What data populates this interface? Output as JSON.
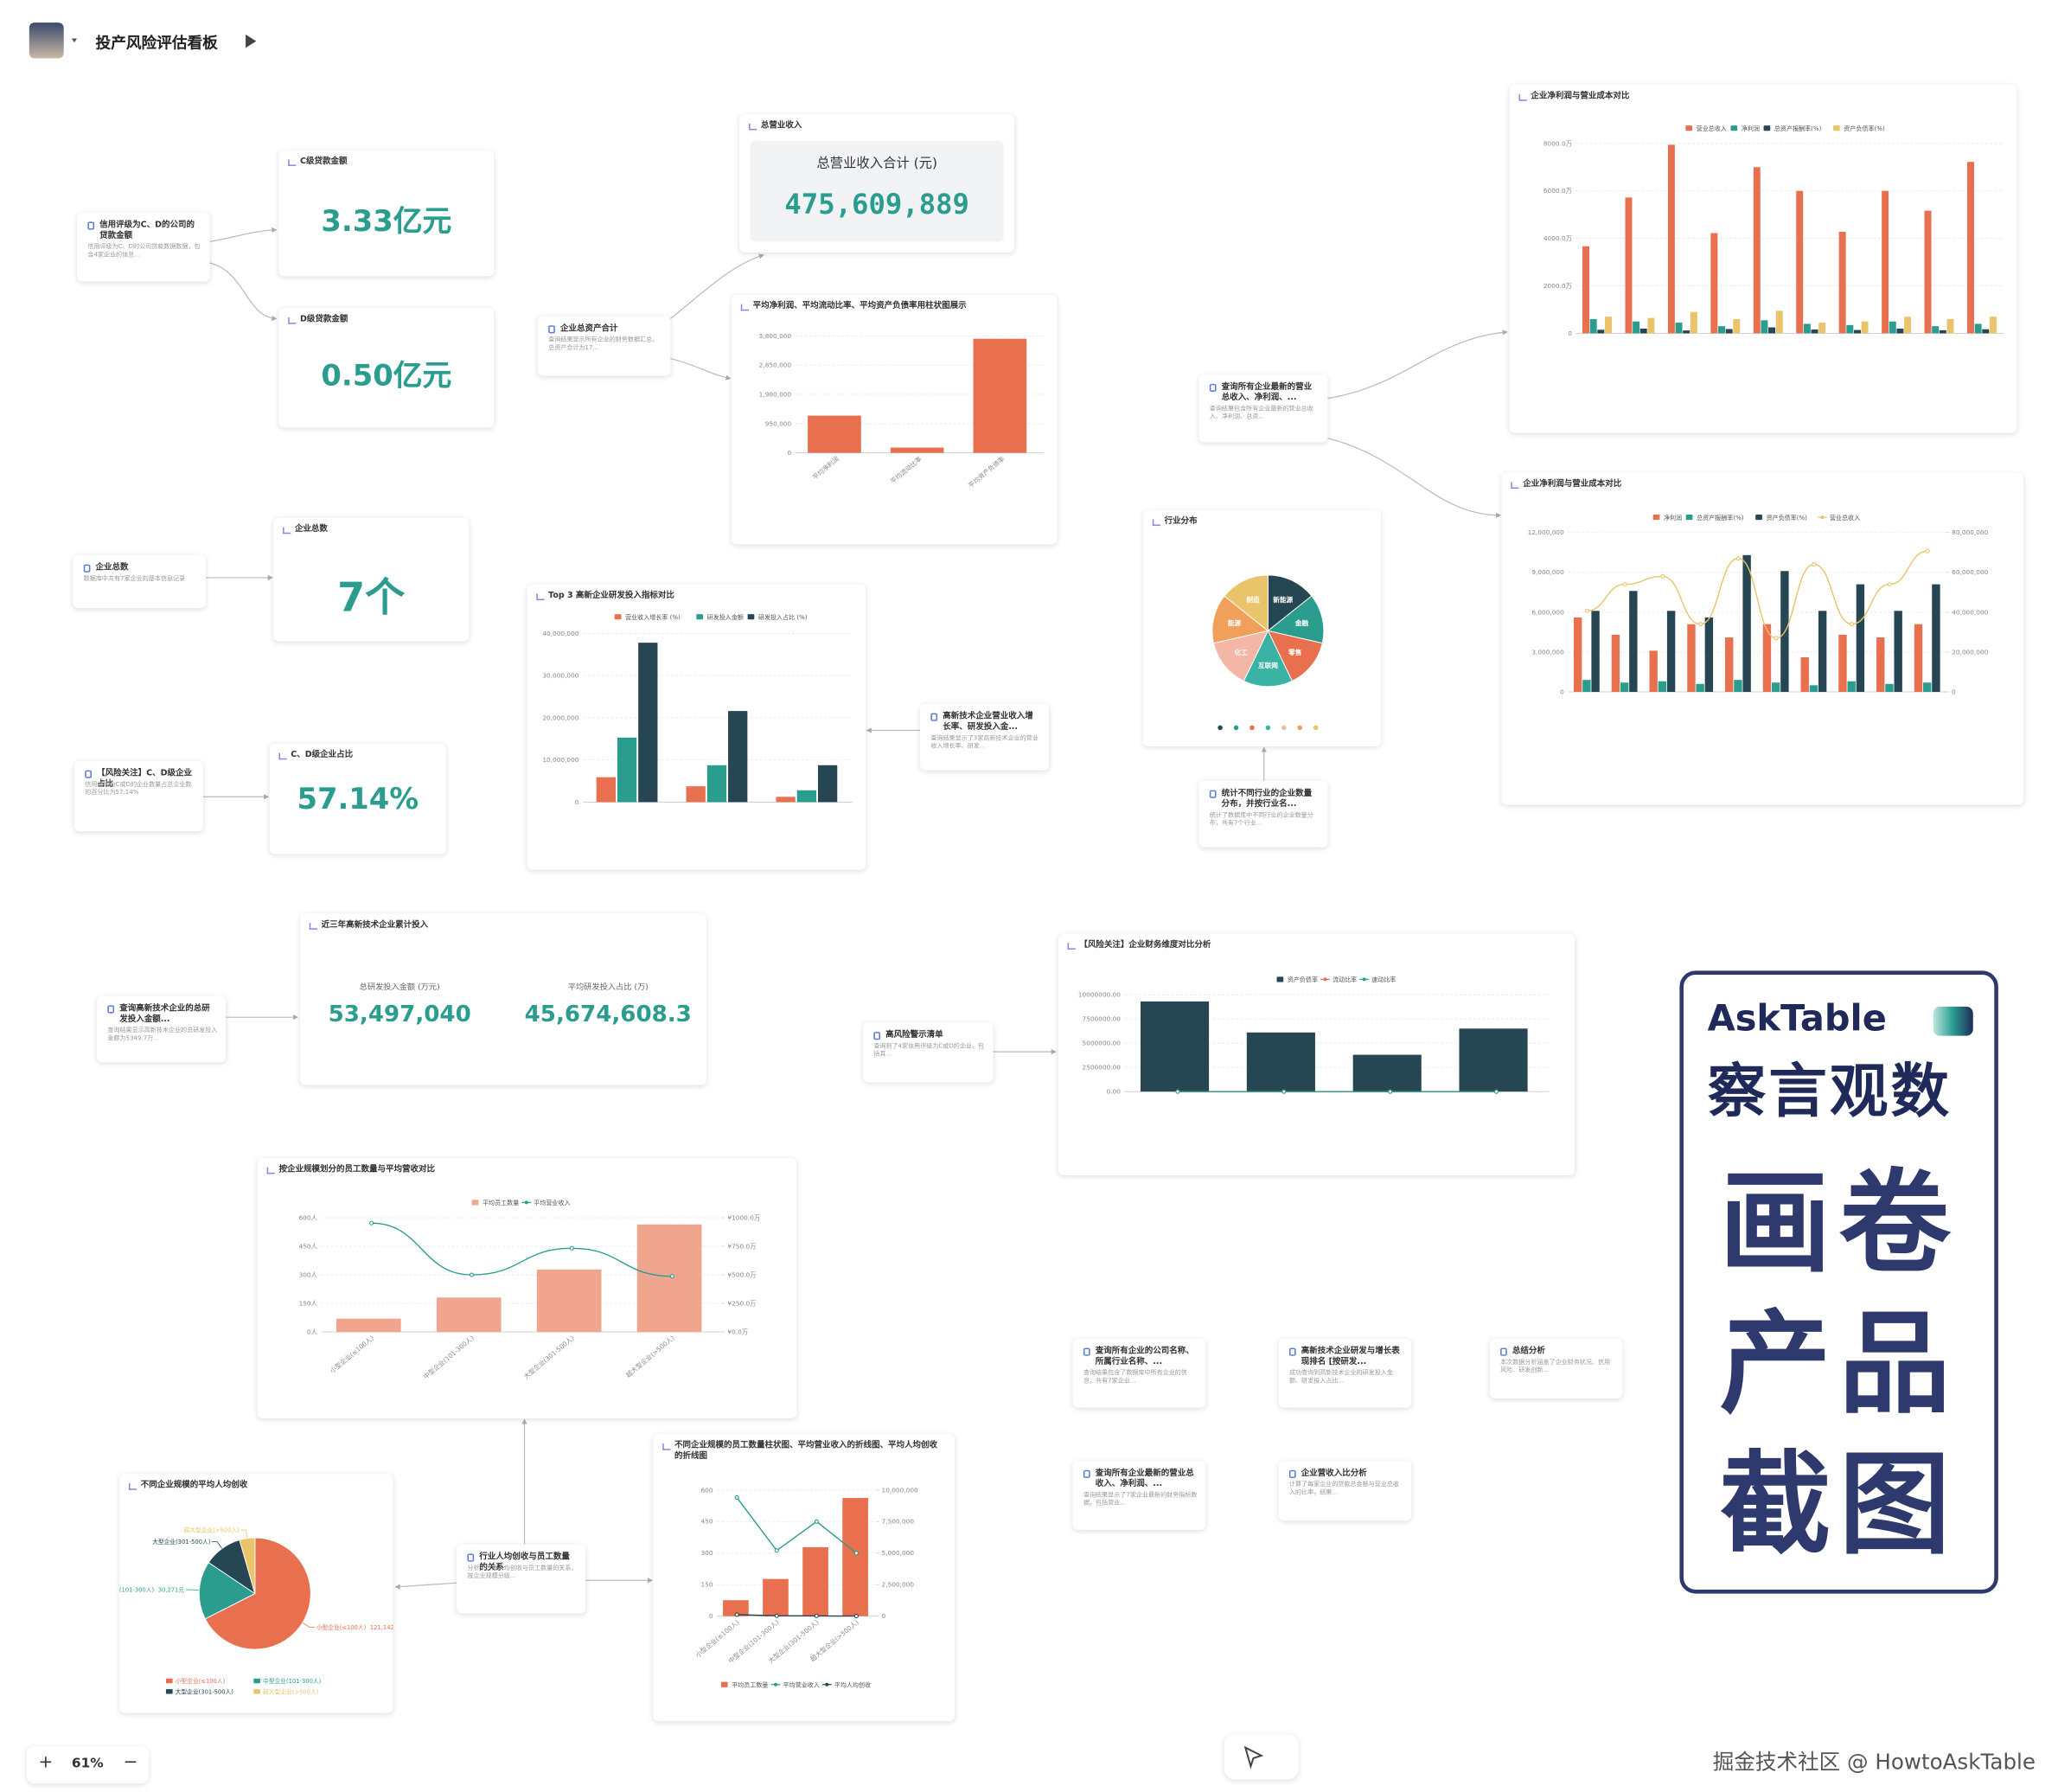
{
  "header": {
    "title": "投产风险评估看板"
  },
  "zoom": {
    "plus": "+",
    "level": "61%",
    "minus": "−"
  },
  "watermark": "掘金技术社区 @ HowtoAskTable",
  "brand": {
    "logo": "AskTable",
    "tagline": "察言观数",
    "lines": [
      "画卷",
      "产品",
      "截图"
    ]
  },
  "query_cards": [
    {
      "title": "信用评级为C、D的公司的贷款金额",
      "desc": "信用评级为C、D的公司贷款数据数据，包含4家企业的信息..."
    },
    {
      "title": "企业总资产合计",
      "desc": "查询结果显示所有企业的财务数据汇总，总资产合计为17..."
    },
    {
      "title": "查询所有企业最新的营业总收入、净利润、...",
      "desc": "查询结果包含所有企业最新的营业总收入、净利润、总资..."
    },
    {
      "title": "企业总数",
      "desc": "数据库中共有7家企业的基本信息记录"
    },
    {
      "title": "高新技术企业营业收入增长率、研发投入金...",
      "desc": "查询结果显示了3家高新技术企业的营业收入增长率、研发..."
    },
    {
      "title": "统计不同行业的企业数量分布，并按行业名...",
      "desc": "统计了数据库中不同行业的企业数量分布，共有7个行业..."
    },
    {
      "title": "【风险关注】C、D级企业占比",
      "desc": "信用评级为C或D的企业数量占总企业数的百分比为57.14%"
    },
    {
      "title": "查询高新技术企业的总研发投入金额...",
      "desc": "查询结果显示高新技术企业的总研发投入金额为5349.7万..."
    },
    {
      "title": "高风险警示清单",
      "desc": "查询到了4家信用评级为C或D的企业，包括其..."
    },
    {
      "title": "行业人均创收与员工数量的关系",
      "desc": "分析了行业人均创收与员工数量的关系，按企业规模分级..."
    },
    {
      "title": "查询所有企业的公司名称、所属行业名称、...",
      "desc": "查询结果包含了数据库中所有企业的信息，共有7家企业..."
    },
    {
      "title": "高新技术企业研发与增长表现排名 [按研发...",
      "desc": "成功查询到高新技术企业的研发投入金额、研发投入占比..."
    },
    {
      "title": "总结分析",
      "desc": "本次数据分析涵盖了企业财务状况、信用风险、研发创新..."
    },
    {
      "title": "查询所有企业最新的营业总收入、净利润、...",
      "desc": "查询结果显示了7家企业最新的财务指标数据，包括营业..."
    },
    {
      "title": "企业营收入比分析",
      "desc": "计算了每家企业的贷款总金额与营业总收入的比率，结果..."
    }
  ],
  "metric_cards": [
    {
      "label": "C级贷款金额",
      "value": "3.33亿元"
    },
    {
      "label": "D级贷款金额",
      "value": "0.50亿元"
    },
    {
      "label": "企业总数",
      "value": "7个"
    },
    {
      "label": "C、D级企业占比",
      "value": "57.14%"
    }
  ],
  "summary_card": {
    "label": "总营业收入",
    "caption": "总营业收入合计 (元)",
    "value": "475,609,889"
  },
  "stats_card": {
    "label": "近三年高新技术企业累计投入",
    "items": [
      {
        "caption": "总研发投入金额 (万元)",
        "value": "53,497,040"
      },
      {
        "caption": "平均研发投入占比 (万)",
        "value": "45,674,608.3"
      }
    ]
  },
  "chart_data": [
    {
      "type": "bar",
      "title": "平均净利润、平均流动比率、平均资产负债率用柱状图展示",
      "categories": [
        "平均净利润",
        "平均流动比率",
        "平均资产负债率"
      ],
      "values": [
        1210000,
        170000,
        3710000
      ],
      "color": "#e8704f",
      "ylim": [
        0,
        3800000
      ],
      "yticks": [
        0,
        {
          "value": 950000,
          "label": "950,000"
        },
        {
          "value": 1900000,
          "label": "1,900,000"
        },
        {
          "value": 2850000,
          "label": "2,850,000"
        },
        {
          "value": 3800000,
          "label": "3,800,000"
        }
      ],
      "grid": true
    },
    {
      "type": "bar",
      "title": "企业净利润与营业成本对比",
      "categories": [
        null,
        null,
        null,
        null,
        null,
        null,
        null,
        null,
        null,
        null
      ],
      "series": [
        {
          "name": "营业总收入",
          "color": "#e8704f",
          "values": [
            3667,
            5722,
            7944,
            4222,
            7000,
            6000,
            4278,
            6000,
            5167,
            7222
          ]
        },
        {
          "name": "净利润",
          "color": "#2a9d8f",
          "values": [
            600,
            500,
            450,
            300,
            550,
            400,
            350,
            500,
            300,
            400
          ]
        },
        {
          "name": "总资产报酬率(%)",
          "color": "#264653",
          "values": [
            150,
            200,
            120,
            180,
            250,
            160,
            140,
            200,
            130,
            170
          ]
        },
        {
          "name": "资产负债率(%)",
          "color": "#e9c46a",
          "values": [
            700,
            650,
            900,
            600,
            950,
            450,
            500,
            700,
            600,
            700
          ]
        }
      ],
      "ylim": [
        0,
        8000
      ],
      "yticks": [
        0,
        {
          "value": 2000,
          "label": "2000.0万"
        },
        {
          "value": 4000,
          "label": "4000.0万"
        },
        {
          "value": 6000,
          "label": "6000.0万"
        },
        {
          "value": 8000,
          "label": "8000.0万"
        }
      ],
      "grid": true
    },
    {
      "type": "bar",
      "title": "企业净利润与营业成本对比",
      "smooth": true,
      "categories": [
        null,
        null,
        null,
        null,
        null,
        null,
        null,
        null,
        null,
        null
      ],
      "series": [
        {
          "name": "净利润",
          "color": "#e8704f",
          "values": [
            5600000,
            4300000,
            3100000,
            5100000,
            4100000,
            5100000,
            2600000,
            4300000,
            4100000,
            5100000
          ]
        },
        {
          "name": "总资产报酬率(%)",
          "color": "#2a9d8f",
          "values": [
            900000,
            700000,
            800000,
            600000,
            900000,
            700000,
            500000,
            800000,
            600000,
            700000
          ]
        },
        {
          "name": "资产负债率(%)",
          "color": "#264653",
          "values": [
            6100000,
            7600000,
            6100000,
            5600000,
            10300000,
            9100000,
            6100000,
            8100000,
            6100000,
            8100000
          ]
        },
        {
          "name": "营业总收入",
          "color": "#e9c46a",
          "type": "line",
          "axis": "y2",
          "values": [
            40700000,
            54000000,
            58000000,
            34000000,
            67000000,
            27000000,
            64000000,
            34000000,
            54000000,
            70700000
          ]
        }
      ],
      "ylim": [
        0,
        12000000
      ],
      "yticks": [
        0,
        {
          "value": 3000000,
          "label": "3,000,000"
        },
        {
          "value": 6000000,
          "label": "6,000,000"
        },
        {
          "value": 9000000,
          "label": "9,000,000"
        },
        {
          "value": 12000000,
          "label": "12,000,000"
        }
      ],
      "y2lim": [
        0,
        80000000
      ],
      "y2ticks": [
        0,
        {
          "value": 20000000,
          "label": "20,000,000"
        },
        {
          "value": 40000000,
          "label": "40,000,000"
        },
        {
          "value": 60000000,
          "label": "60,000,000"
        },
        {
          "value": 80000000,
          "label": "80,000,000"
        }
      ],
      "grid": true
    },
    {
      "type": "bar",
      "title": "Top 3 高新企业研发投入指标对比",
      "categories": [
        null,
        null,
        null
      ],
      "series": [
        {
          "name": "营业收入增长率 (%)",
          "color": "#e8704f",
          "values": [
            5900000,
            3750000,
            1250000
          ]
        },
        {
          "name": "研发投入金额",
          "color": "#2a9d8f",
          "values": [
            15300000,
            8750000,
            2800000
          ]
        },
        {
          "name": "研发投入占比 (%)",
          "color": "#264653",
          "values": [
            37800000,
            21600000,
            8750000
          ]
        }
      ],
      "ylim": [
        0,
        40000000
      ],
      "yticks": [
        0,
        {
          "value": 10000000,
          "label": "10,000,000"
        },
        {
          "value": 20000000,
          "label": "20,000,000"
        },
        {
          "value": 30000000,
          "label": "30,000,000"
        },
        {
          "value": 40000000,
          "label": "40,000,000"
        }
      ],
      "grid": true
    },
    {
      "type": "pie",
      "title": "行业分布",
      "labels": "inside",
      "categories": [
        "新能源",
        "金融",
        "零售",
        "互联网",
        "化工",
        "能源",
        "制造"
      ],
      "values": [
        1,
        1,
        1,
        1,
        1,
        1,
        1
      ],
      "colors": [
        "#264653",
        "#2a9d8f",
        "#e8704f",
        "#3bb3a4",
        "#f4b6a6",
        "#f0a05a",
        "#e9c46a"
      ]
    },
    {
      "type": "bar",
      "title": "【风险关注】企业财务维度对比分析",
      "categories": [
        null,
        null,
        null,
        null
      ],
      "series": [
        {
          "name": "资产负债率",
          "color": "#264653",
          "values": [
            9300000,
            6100000,
            3800000,
            6500000
          ]
        },
        {
          "name": "流动比率",
          "color": "#e8704f",
          "type": "line",
          "values": [
            1.8,
            1.5,
            1.2,
            2.1
          ]
        },
        {
          "name": "速动比率",
          "color": "#2a9d8f",
          "type": "line",
          "values": [
            1.2,
            1.0,
            0.8,
            1.5
          ]
        }
      ],
      "ylim": [
        0,
        10000000
      ],
      "yticks": [
        {
          "value": 0,
          "label": "0.00"
        },
        {
          "value": 2500000,
          "label": "2500000.00"
        },
        {
          "value": 5000000,
          "label": "5000000.00"
        },
        {
          "value": 7500000,
          "label": "7500000.00"
        },
        {
          "value": 10000000,
          "label": "10000000.00"
        }
      ],
      "grid": true
    },
    {
      "type": "bar",
      "title": "按企业规模划分的员工数量与平均营收对比",
      "smooth": true,
      "categories": [
        "小型企业(≤100人)",
        "中型企业(101-300人)",
        "大型企业(301-500人)",
        "超大型企业(>500人)"
      ],
      "series": [
        {
          "name": "平均员工数量",
          "color": "#f0a58f",
          "values": [
            70,
            181,
            328,
            565
          ]
        },
        {
          "name": "平均营业收入",
          "color": "#2a9d8f",
          "type": "line",
          "axis": "y2",
          "values": [
            953,
            500,
            733,
            488
          ]
        }
      ],
      "ylim": [
        0,
        600
      ],
      "yticks": [
        {
          "value": 0,
          "label": "0人"
        },
        {
          "value": 150,
          "label": "150人"
        },
        {
          "value": 300,
          "label": "300人"
        },
        {
          "value": 450,
          "label": "450人"
        },
        {
          "value": 600,
          "label": "600人"
        }
      ],
      "y2lim": [
        0,
        1000
      ],
      "y2ticks": [
        {
          "value": 0,
          "label": "¥0.0万"
        },
        {
          "value": 250,
          "label": "¥250.0万"
        },
        {
          "value": 500,
          "label": "¥500.0万"
        },
        {
          "value": 750,
          "label": "¥750.0万"
        },
        {
          "value": 1000,
          "label": "¥1000.0万"
        }
      ],
      "grid": true
    },
    {
      "type": "pie",
      "title": "不同企业规模的平均人均创收",
      "labels": "outside",
      "categories": [
        "小型企业(≤100人)",
        "中型企业(101-300人)",
        "大型企业(301-500人)",
        "超大型企业(>500人)"
      ],
      "values": [
        121142,
        30271,
        20000,
        8000
      ],
      "value_labels": [
        "121,142元",
        "30,271元",
        null,
        null
      ],
      "colors": [
        "#e8704f",
        "#2a9d8f",
        "#264653",
        "#e9c46a"
      ]
    },
    {
      "type": "bar",
      "title": "不同企业规模的员工数量柱状图、平均营业收入的折线图、平均人均创收的折线图",
      "categories": [
        "小型企业(≤100人)",
        "中型企业(101-300人)",
        "大型企业(301-500人)",
        "超大型企业(>500人)"
      ],
      "series": [
        {
          "name": "平均员工数量",
          "color": "#e8704f",
          "values": [
            76,
            177,
            328,
            562
          ]
        },
        {
          "name": "平均营业收入",
          "color": "#2a9d8f",
          "type": "line",
          "axis": "y2",
          "values": [
            9400000,
            5200000,
            7500000,
            5000000
          ]
        },
        {
          "name": "平均人均创收",
          "color": "#264653",
          "type": "line",
          "axis": "y2",
          "values": [
            121142,
            30271,
            20000,
            8000
          ]
        }
      ],
      "ylim": [
        0,
        600
      ],
      "yticks": [
        0,
        150,
        300,
        450,
        600
      ],
      "y2lim": [
        0,
        10000000
      ],
      "y2ticks": [
        0,
        {
          "value": 2500000,
          "label": "2,500,000"
        },
        {
          "value": 5000000,
          "label": "5,000,000"
        },
        {
          "value": 7500000,
          "label": "7,500,000"
        },
        {
          "value": 10000000,
          "label": "10,000,000"
        }
      ],
      "grid": true
    }
  ]
}
